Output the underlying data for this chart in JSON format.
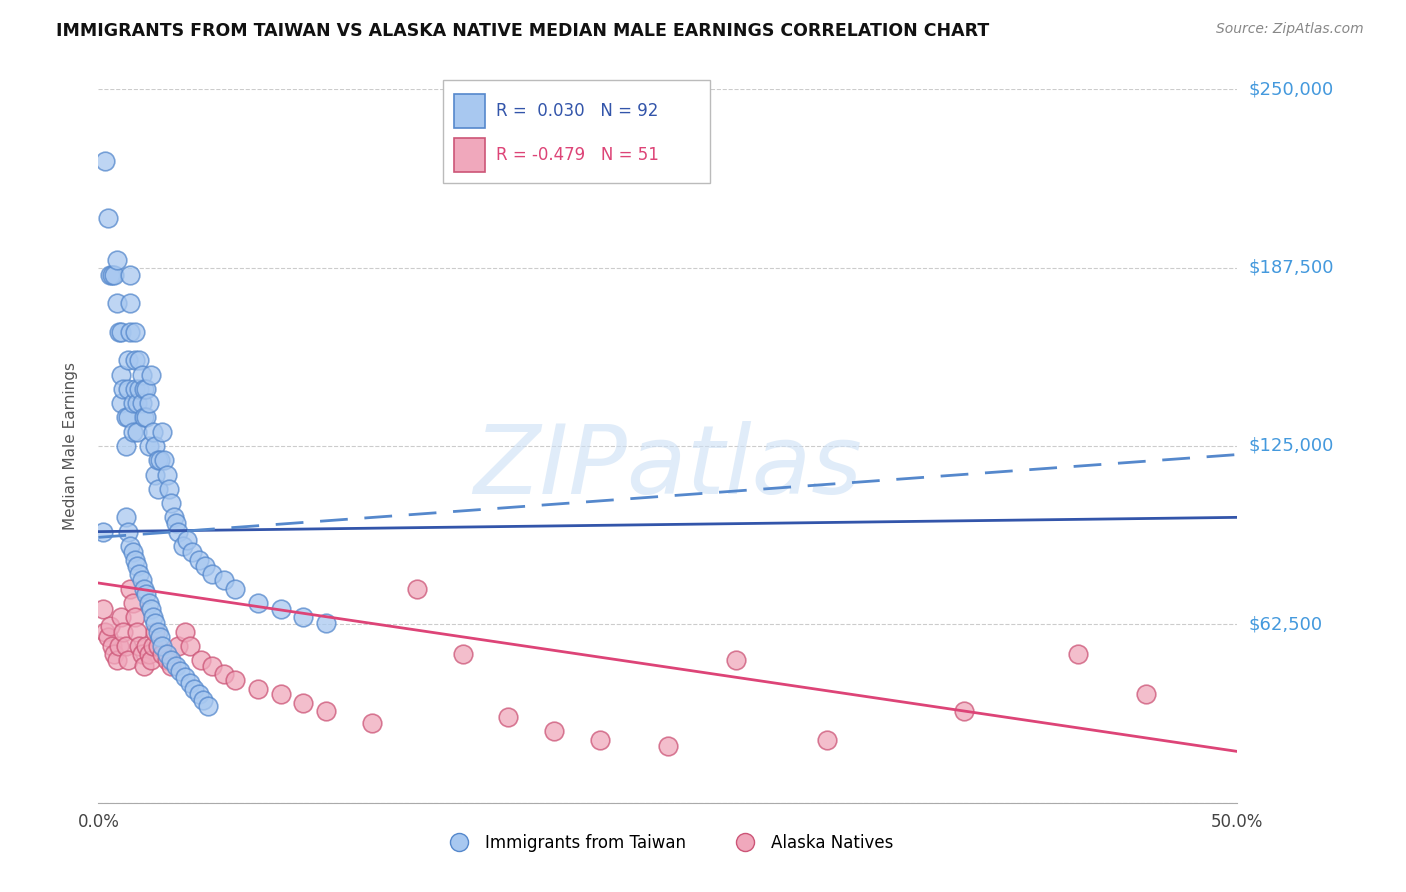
{
  "title": "IMMIGRANTS FROM TAIWAN VS ALASKA NATIVE MEDIAN MALE EARNINGS CORRELATION CHART",
  "source": "Source: ZipAtlas.com",
  "ylabel": "Median Male Earnings",
  "xlim": [
    0.0,
    0.5
  ],
  "ylim": [
    0,
    250000
  ],
  "yticks": [
    0,
    62500,
    125000,
    187500,
    250000
  ],
  "ytick_labels": [
    "",
    "$62,500",
    "$125,000",
    "$187,500",
    "$250,000"
  ],
  "xtick_labels": [
    "0.0%",
    "",
    "",
    "",
    "",
    "50.0%"
  ],
  "xtick_positions": [
    0.0,
    0.1,
    0.2,
    0.3,
    0.4,
    0.5
  ],
  "watermark": "ZIPatlas",
  "taiwan_R": "0.030",
  "taiwan_N": "92",
  "alaska_R": "-0.479",
  "alaska_N": "51",
  "taiwan_color": "#a8c8f0",
  "taiwan_edge_color": "#5588cc",
  "alaska_color": "#f0a8bc",
  "alaska_edge_color": "#cc5577",
  "taiwan_line_color": "#3355aa",
  "alaska_line_color": "#dd4477",
  "dashed_line_color": "#5588cc",
  "grid_color": "#cccccc",
  "ytick_color": "#4499dd",
  "background_color": "#ffffff",
  "taiwan_line_y0": 95000,
  "taiwan_line_y1": 100000,
  "alaska_line_y0": 77000,
  "alaska_line_y1": 18000,
  "dashed_line_y0": 93000,
  "dashed_line_y1": 122000,
  "taiwan_scatter_x": [
    0.002,
    0.003,
    0.004,
    0.005,
    0.006,
    0.007,
    0.008,
    0.008,
    0.009,
    0.01,
    0.01,
    0.01,
    0.011,
    0.012,
    0.012,
    0.013,
    0.013,
    0.013,
    0.014,
    0.014,
    0.014,
    0.015,
    0.015,
    0.016,
    0.016,
    0.016,
    0.017,
    0.017,
    0.018,
    0.018,
    0.019,
    0.019,
    0.02,
    0.02,
    0.021,
    0.021,
    0.022,
    0.022,
    0.023,
    0.024,
    0.025,
    0.025,
    0.026,
    0.026,
    0.027,
    0.028,
    0.029,
    0.03,
    0.031,
    0.032,
    0.033,
    0.034,
    0.035,
    0.037,
    0.039,
    0.041,
    0.044,
    0.047,
    0.05,
    0.055,
    0.06,
    0.07,
    0.08,
    0.09,
    0.1,
    0.012,
    0.013,
    0.014,
    0.015,
    0.016,
    0.017,
    0.018,
    0.019,
    0.02,
    0.021,
    0.022,
    0.023,
    0.024,
    0.025,
    0.026,
    0.027,
    0.028,
    0.03,
    0.032,
    0.034,
    0.036,
    0.038,
    0.04,
    0.042,
    0.044,
    0.046,
    0.048
  ],
  "taiwan_scatter_y": [
    95000,
    225000,
    205000,
    185000,
    185000,
    185000,
    190000,
    175000,
    165000,
    165000,
    150000,
    140000,
    145000,
    135000,
    125000,
    155000,
    145000,
    135000,
    185000,
    175000,
    165000,
    140000,
    130000,
    165000,
    155000,
    145000,
    140000,
    130000,
    155000,
    145000,
    150000,
    140000,
    145000,
    135000,
    145000,
    135000,
    140000,
    125000,
    150000,
    130000,
    125000,
    115000,
    120000,
    110000,
    120000,
    130000,
    120000,
    115000,
    110000,
    105000,
    100000,
    98000,
    95000,
    90000,
    92000,
    88000,
    85000,
    83000,
    80000,
    78000,
    75000,
    70000,
    68000,
    65000,
    63000,
    100000,
    95000,
    90000,
    88000,
    85000,
    83000,
    80000,
    78000,
    75000,
    73000,
    70000,
    68000,
    65000,
    63000,
    60000,
    58000,
    55000,
    52000,
    50000,
    48000,
    46000,
    44000,
    42000,
    40000,
    38000,
    36000,
    34000
  ],
  "alaska_scatter_x": [
    0.002,
    0.003,
    0.004,
    0.005,
    0.006,
    0.007,
    0.008,
    0.009,
    0.01,
    0.011,
    0.012,
    0.013,
    0.014,
    0.015,
    0.016,
    0.017,
    0.018,
    0.019,
    0.02,
    0.021,
    0.022,
    0.023,
    0.024,
    0.025,
    0.026,
    0.028,
    0.03,
    0.032,
    0.035,
    0.038,
    0.04,
    0.045,
    0.05,
    0.055,
    0.06,
    0.07,
    0.08,
    0.09,
    0.1,
    0.12,
    0.14,
    0.16,
    0.18,
    0.2,
    0.22,
    0.25,
    0.28,
    0.32,
    0.38,
    0.43,
    0.46
  ],
  "alaska_scatter_y": [
    68000,
    60000,
    58000,
    62000,
    55000,
    52000,
    50000,
    55000,
    65000,
    60000,
    55000,
    50000,
    75000,
    70000,
    65000,
    60000,
    55000,
    52000,
    48000,
    55000,
    52000,
    50000,
    55000,
    60000,
    55000,
    52000,
    50000,
    48000,
    55000,
    60000,
    55000,
    50000,
    48000,
    45000,
    43000,
    40000,
    38000,
    35000,
    32000,
    28000,
    75000,
    52000,
    30000,
    25000,
    22000,
    20000,
    50000,
    22000,
    32000,
    52000,
    38000
  ]
}
